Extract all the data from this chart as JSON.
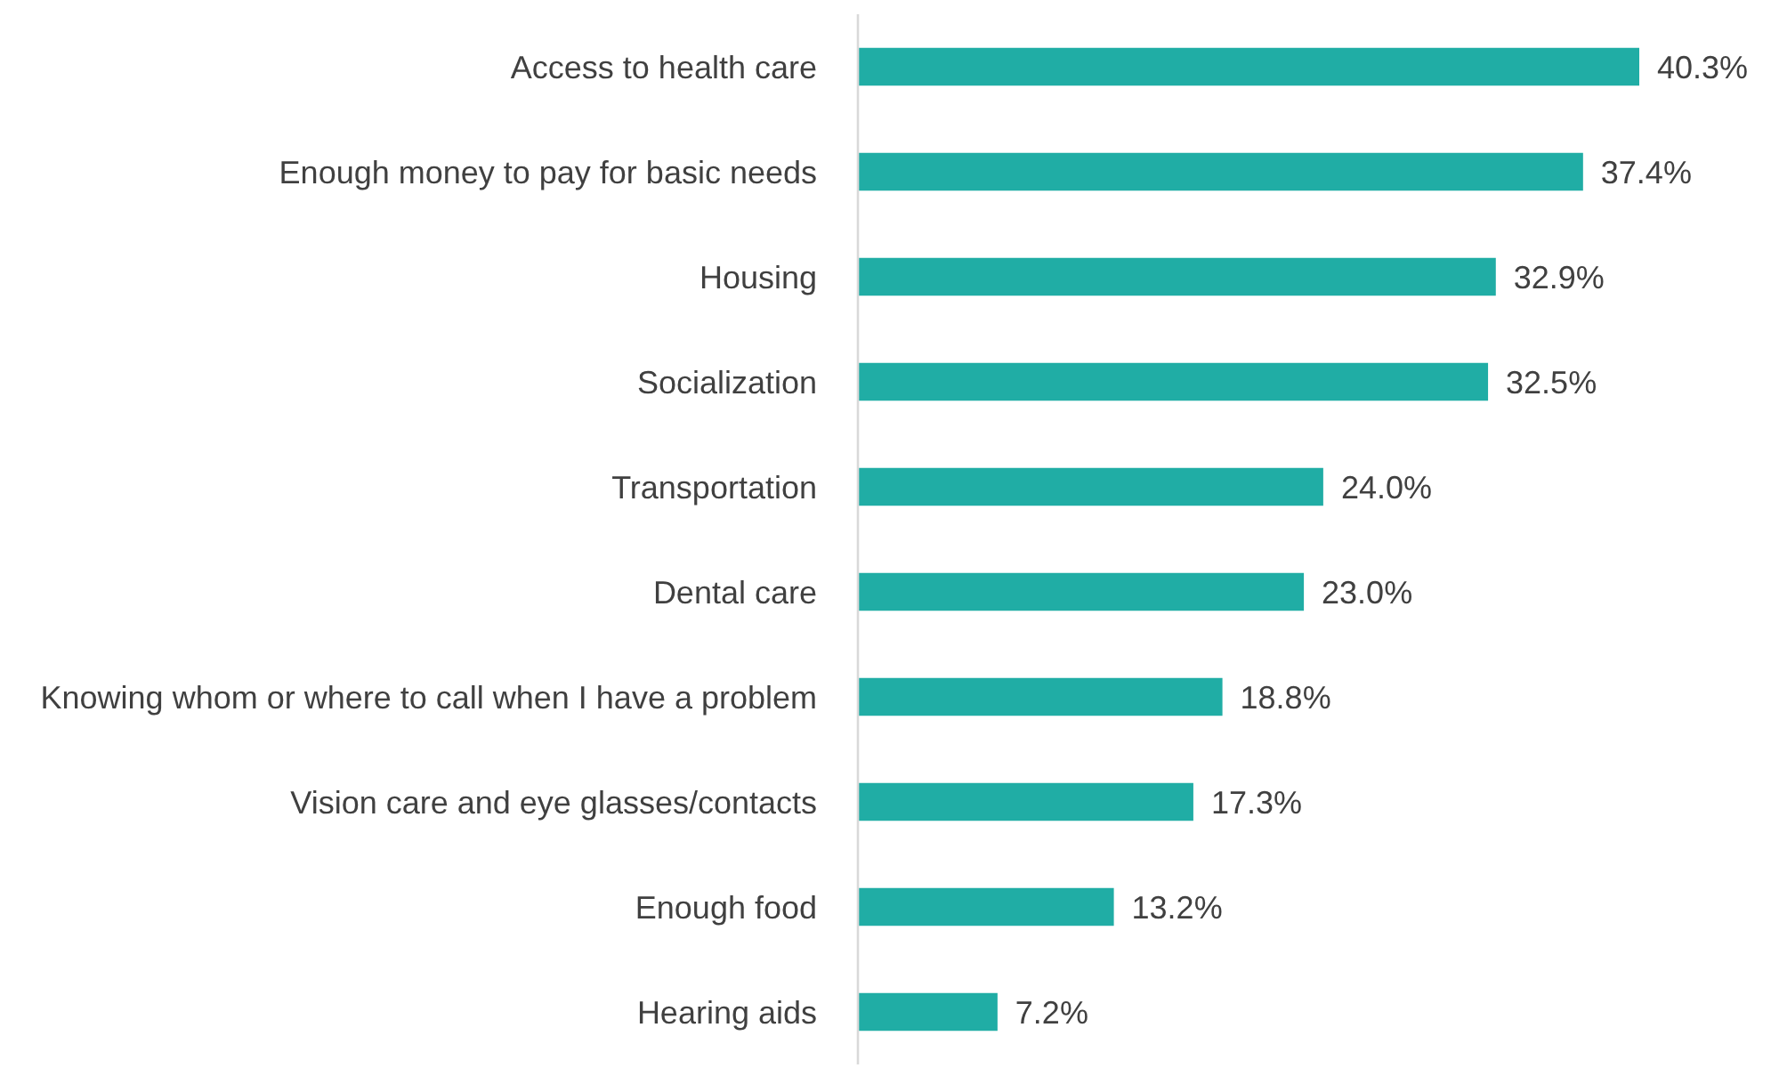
{
  "chart_data": {
    "type": "bar",
    "orientation": "horizontal",
    "categories": [
      "Access to health care",
      "Enough money to pay for basic needs",
      "Housing",
      "Socialization",
      "Transportation",
      "Dental care",
      "Knowing whom or where to call when I have a problem",
      "Vision care and eye glasses/contacts",
      "Enough food",
      "Hearing aids"
    ],
    "values": [
      40.3,
      37.4,
      32.9,
      32.5,
      24.0,
      23.0,
      18.8,
      17.3,
      13.2,
      7.2
    ],
    "value_labels": [
      "40.3%",
      "37.4%",
      "32.9%",
      "32.5%",
      "24.0%",
      "23.0%",
      "18.8%",
      "17.3%",
      "13.2%",
      "7.2%"
    ],
    "color": "#20ada5"
  }
}
